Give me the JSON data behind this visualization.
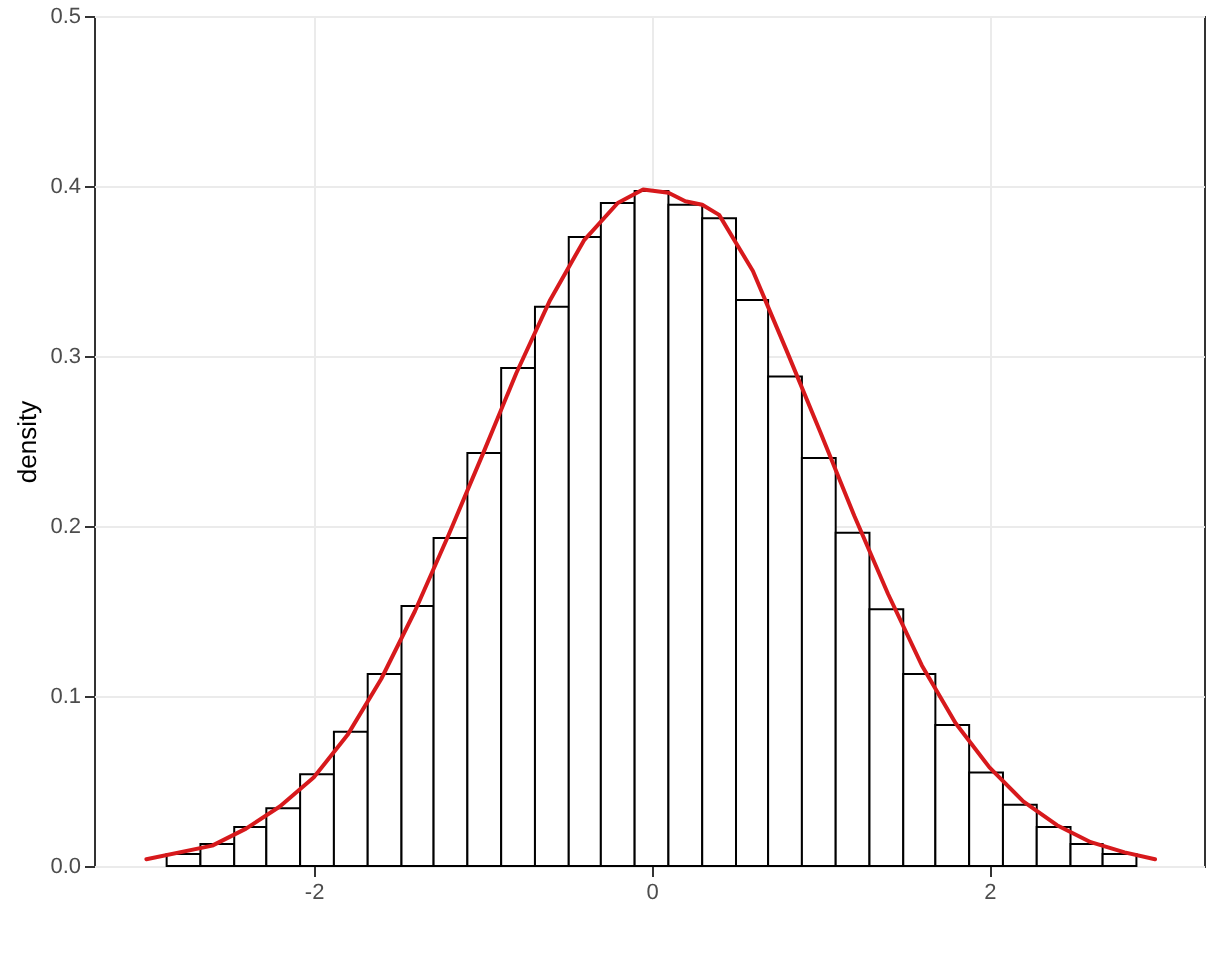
{
  "chart_data": {
    "type": "histogram",
    "ylabel": "density",
    "bins": [
      -2.87,
      -2.67,
      -2.47,
      -2.28,
      -2.08,
      -1.88,
      -1.68,
      -1.48,
      -1.29,
      -1.09,
      -0.89,
      -0.69,
      -0.49,
      -0.3,
      -0.1,
      0.1,
      0.3,
      0.5,
      0.69,
      0.89,
      1.09,
      1.29,
      1.49,
      1.68,
      1.88,
      2.08,
      2.28,
      2.48,
      2.67,
      2.87
    ],
    "series": [
      {
        "color": "#ffffff",
        "values": [
          0.007,
          0.013,
          0.023,
          0.034,
          0.054,
          0.079,
          0.113,
          0.153,
          0.193,
          0.243,
          0.293,
          0.329,
          0.37,
          0.39,
          0.397,
          0.389,
          0.381,
          0.333,
          0.288,
          0.24,
          0.196,
          0.151,
          0.113,
          0.083,
          0.055,
          0.036,
          0.023,
          0.013,
          0.007
        ]
      },
      {
        "type": "line",
        "color": "#d7191c",
        "x": [
          -2.99,
          -2.6,
          -2.4,
          -2.2,
          -2.0,
          -1.8,
          -1.6,
          -1.4,
          -1.2,
          -1.0,
          -0.8,
          -0.6,
          -0.4,
          -0.2,
          -0.05,
          0.1,
          0.2,
          0.3,
          0.4,
          0.6,
          0.8,
          1.0,
          1.2,
          1.4,
          1.6,
          1.8,
          2.0,
          2.2,
          2.4,
          2.6,
          2.8,
          2.98
        ],
        "values": [
          0.004,
          0.012,
          0.022,
          0.035,
          0.052,
          0.077,
          0.11,
          0.15,
          0.195,
          0.242,
          0.29,
          0.333,
          0.368,
          0.39,
          0.398,
          0.396,
          0.391,
          0.389,
          0.383,
          0.35,
          0.303,
          0.255,
          0.206,
          0.16,
          0.118,
          0.084,
          0.058,
          0.038,
          0.024,
          0.014,
          0.008,
          0.004
        ]
      }
    ],
    "xlim": [
      -3.3,
      3.27
    ],
    "xticks": [
      -2,
      0,
      2
    ],
    "ylim": [
      0,
      0.5
    ],
    "yticks": [
      {
        "value": 0,
        "label": "0.0"
      },
      {
        "value": 0.1,
        "label": "0.1"
      },
      {
        "value": 0.2,
        "label": "0.2"
      },
      {
        "value": 0.3,
        "label": "0.3"
      },
      {
        "value": 0.4,
        "label": "0.4"
      },
      {
        "value": 0.5,
        "label": "0.5"
      }
    ],
    "grid": true
  }
}
